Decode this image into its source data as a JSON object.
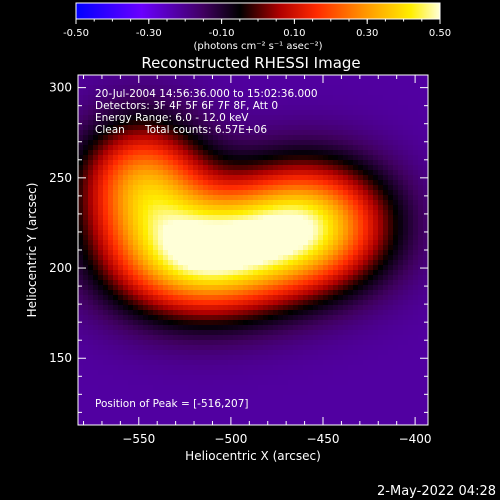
{
  "colorbar": {
    "ticks": [
      "-0.50",
      "-0.30",
      "-0.10",
      "0.10",
      "0.30",
      "0.50"
    ],
    "tick_values": [
      -0.5,
      -0.3,
      -0.1,
      0.1,
      0.3,
      0.5
    ],
    "unit_label": "(photons cm⁻² s⁻¹ asec⁻²)",
    "range": [
      -0.5,
      0.5
    ]
  },
  "chart_data": {
    "type": "heatmap",
    "title": "Reconstructed RHESSI Image",
    "xlabel": "Heliocentric X (arcsec)",
    "ylabel": "Heliocentric Y (arcsec)",
    "xlim": [
      -583,
      -393
    ],
    "ylim": [
      113,
      307
    ],
    "x_ticks": [
      -550,
      -500,
      -450,
      -400
    ],
    "x_tick_labels": [
      "−550",
      "−500",
      "−450",
      "−400"
    ],
    "y_ticks": [
      150,
      200,
      250,
      300
    ],
    "y_tick_labels": [
      "150",
      "200",
      "250",
      "300"
    ],
    "colormap": [
      "#0000ff",
      "#7b00ff",
      "#000000",
      "#ff0000",
      "#ffff00",
      "#ffffff"
    ],
    "sources": [
      {
        "x": -516,
        "y": 207,
        "sx": 34,
        "sy": 23,
        "amp": 0.5
      },
      {
        "x": -458,
        "y": 224,
        "sx": 30,
        "sy": 24,
        "amp": 0.42
      },
      {
        "x": -548,
        "y": 248,
        "sx": 24,
        "sy": 24,
        "amp": 0.28
      }
    ],
    "background": -0.22,
    "peak": [
      -516,
      207
    ]
  },
  "info": {
    "line1": "20-Jul-2004 14:56:36.000 to 15:02:36.000",
    "line2": "Detectors: 3F 4F 5F 6F 7F 8F, Att 0",
    "line3": "Energy Range: 6.0 - 12.0 keV",
    "line4_method": "Clean",
    "line4_counts": "Total counts: 6.57E+06",
    "peak_text": "Position of Peak = [-516,207]"
  },
  "datestamp": "2-May-2022 04:28"
}
